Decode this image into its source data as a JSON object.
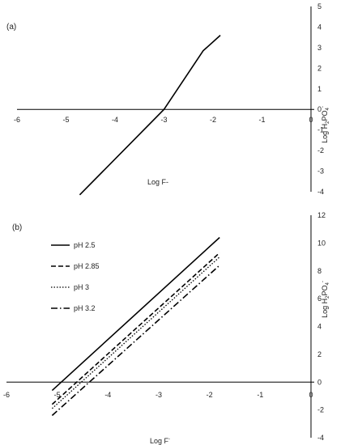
{
  "chart_data": [
    {
      "panel": "(a)",
      "type": "line",
      "xlabel": "Log F-",
      "ylabel": "Log H2PO4-",
      "xlim": [
        -6,
        0
      ],
      "ylim": [
        -4,
        5
      ],
      "x_ticks": [
        "-6",
        "-5",
        "-4",
        "-3",
        "-2",
        "-1",
        "0"
      ],
      "y_ticks": [
        "-4",
        "-3",
        "-2",
        "-1",
        "0",
        "1",
        "2",
        "3",
        "4",
        "5"
      ],
      "series": [
        {
          "x": [
            -4.72,
            -3.0,
            -2.2,
            -1.85
          ],
          "y": [
            -4.15,
            0.0,
            2.85,
            3.6
          ]
        }
      ],
      "grid": false,
      "legend": "none"
    },
    {
      "panel": "(b)",
      "type": "line",
      "xlabel": "Log F-",
      "ylabel": "Log H2PO4-",
      "xlim": [
        -6,
        0
      ],
      "ylim": [
        -4,
        12
      ],
      "x_ticks": [
        "-6",
        "-5",
        "-4",
        "-3",
        "-2",
        "-1",
        "0"
      ],
      "y_ticks": [
        "-4",
        "-2",
        "0",
        "2",
        "4",
        "6",
        "8",
        "10",
        "12"
      ],
      "series": [
        {
          "name": "pH 2.5",
          "style": "solid",
          "x": [
            -5.1,
            -1.8
          ],
          "y": [
            -0.6,
            10.4
          ]
        },
        {
          "name": "pH 2.85",
          "style": "dashed",
          "x": [
            -5.1,
            -1.8
          ],
          "y": [
            -1.6,
            9.3
          ]
        },
        {
          "name": "pH 3",
          "style": "dotted",
          "x": [
            -5.1,
            -1.8
          ],
          "y": [
            -1.9,
            9.0
          ]
        },
        {
          "name": "pH 3.2",
          "style": "dashdot",
          "x": [
            -5.1,
            -1.8
          ],
          "y": [
            -2.4,
            8.4
          ]
        }
      ],
      "grid": false,
      "legend": "top-left"
    }
  ]
}
